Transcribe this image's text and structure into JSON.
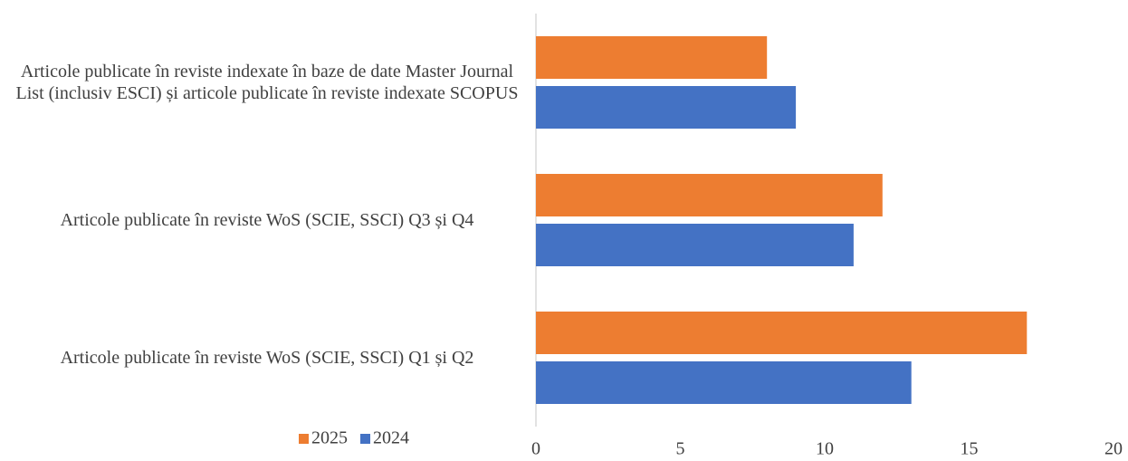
{
  "chart_data": {
    "type": "barh",
    "categories": [
      "Articole publicate în reviste indexate în baze de date Master Journal List (inclusiv ESCI) și articole publicate în reviste indexate SCOPUS",
      "Articole publicate în reviste WoS (SCIE, SSCI) Q3 și Q4",
      "Articole publicate în reviste WoS (SCIE, SSCI) Q1 și Q2"
    ],
    "series": [
      {
        "name": "2025",
        "color": "#ed7d31",
        "values": [
          8,
          12,
          17
        ]
      },
      {
        "name": "2024",
        "color": "#4472c4",
        "values": [
          9,
          11,
          13
        ]
      }
    ],
    "xlim": [
      0,
      20
    ],
    "xticks": [
      0,
      5,
      10,
      15,
      20
    ],
    "grid": false,
    "legend": "bottom-left"
  }
}
